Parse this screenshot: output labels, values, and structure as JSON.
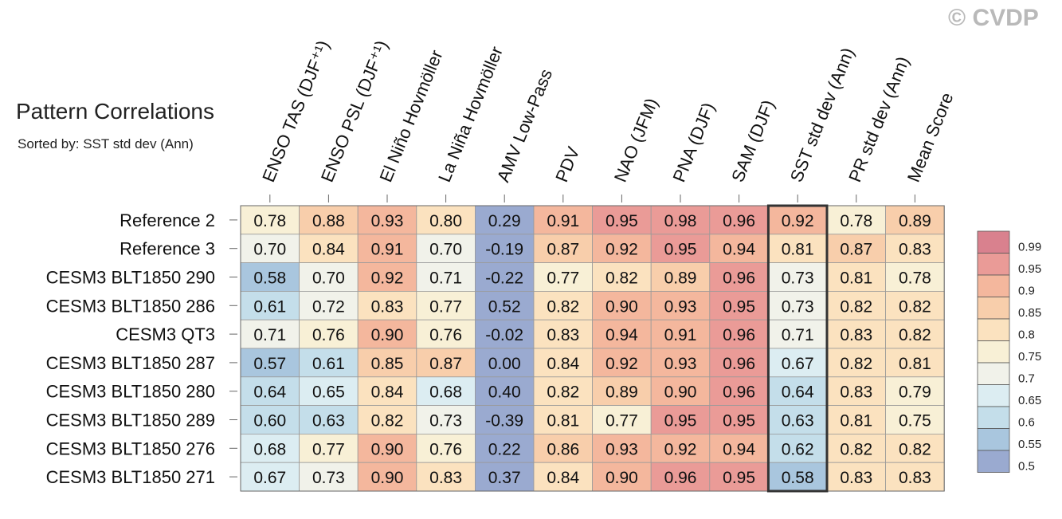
{
  "chart_data": {
    "type": "heatmap",
    "title": "Pattern Correlations",
    "subtitle": "Sorted by: SST std dev (Ann)",
    "watermark": "© CVDP",
    "columns": [
      "ENSO TAS (DJF⁺¹)",
      "ENSO PSL (DJF⁺¹)",
      "El Niño Hovmöller",
      "La Niña Hovmöller",
      "AMV Low-Pass",
      "PDV",
      "NAO (JFM)",
      "PNA (DJF)",
      "SAM (DJF)",
      "SST std dev (Ann)",
      "PR std dev (Ann)",
      "Mean Score"
    ],
    "rows": [
      "Reference 2",
      "Reference 3",
      "CESM3 BLT1850 290",
      "CESM3 BLT1850 286",
      "CESM3 QT3",
      "CESM3 BLT1850 287",
      "CESM3 BLT1850 280",
      "CESM3 BLT1850 289",
      "CESM3 BLT1850 276",
      "CESM3 BLT1850 271"
    ],
    "values": [
      [
        "0.78",
        "0.88",
        "0.93",
        "0.80",
        "0.29",
        "0.91",
        "0.95",
        "0.98",
        "0.96",
        "0.92",
        "0.78",
        "0.89"
      ],
      [
        "0.70",
        "0.84",
        "0.91",
        "0.70",
        "-0.19",
        "0.87",
        "0.92",
        "0.95",
        "0.94",
        "0.81",
        "0.87",
        "0.83"
      ],
      [
        "0.58",
        "0.70",
        "0.92",
        "0.71",
        "-0.22",
        "0.77",
        "0.82",
        "0.89",
        "0.96",
        "0.73",
        "0.81",
        "0.78"
      ],
      [
        "0.61",
        "0.72",
        "0.83",
        "0.77",
        "0.52",
        "0.82",
        "0.90",
        "0.93",
        "0.95",
        "0.73",
        "0.82",
        "0.82"
      ],
      [
        "0.71",
        "0.76",
        "0.90",
        "0.76",
        "-0.02",
        "0.83",
        "0.94",
        "0.91",
        "0.96",
        "0.71",
        "0.83",
        "0.82"
      ],
      [
        "0.57",
        "0.61",
        "0.85",
        "0.87",
        "0.00",
        "0.84",
        "0.92",
        "0.93",
        "0.96",
        "0.67",
        "0.82",
        "0.81"
      ],
      [
        "0.64",
        "0.65",
        "0.84",
        "0.68",
        "0.40",
        "0.82",
        "0.89",
        "0.90",
        "0.96",
        "0.64",
        "0.83",
        "0.79"
      ],
      [
        "0.60",
        "0.63",
        "0.82",
        "0.73",
        "-0.39",
        "0.81",
        "0.77",
        "0.95",
        "0.95",
        "0.63",
        "0.81",
        "0.75"
      ],
      [
        "0.68",
        "0.77",
        "0.90",
        "0.76",
        "0.22",
        "0.86",
        "0.93",
        "0.92",
        "0.94",
        "0.62",
        "0.82",
        "0.82"
      ],
      [
        "0.67",
        "0.73",
        "0.90",
        "0.83",
        "0.37",
        "0.84",
        "0.90",
        "0.96",
        "0.95",
        "0.58",
        "0.83",
        "0.83"
      ]
    ],
    "highlight_column": "SST std dev (Ann)",
    "colorbar": {
      "labels": [
        "0.99",
        "0.95",
        "0.9",
        "0.85",
        "0.8",
        "0.75",
        "0.7",
        "0.65",
        "0.6",
        "0.55",
        "0.5"
      ],
      "bin_colors": [
        "#d9818e",
        "#ea9b97",
        "#f4b79d",
        "#f8ceab",
        "#fbe2bf",
        "#f8f0d6",
        "#f1f2ea",
        "#dcedf2",
        "#c4deea",
        "#a9c6de",
        "#9aaad0"
      ],
      "legend_position": "right"
    }
  }
}
